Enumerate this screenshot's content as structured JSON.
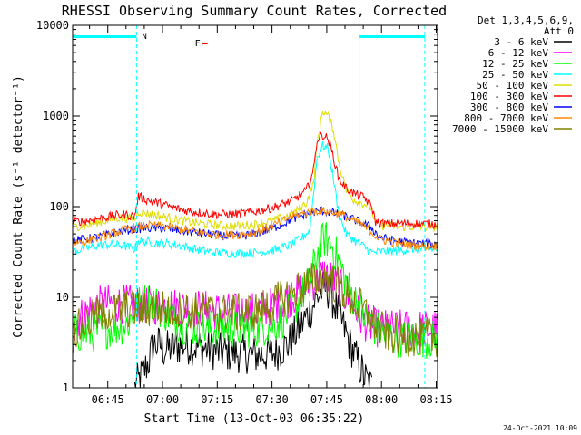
{
  "chart_data": {
    "type": "line",
    "title": "RHESSI Observing Summary Count Rates, Corrected",
    "xlabel": "Start Time (13-Oct-03 06:35:22)",
    "ylabel": "Corrected Count Rate (s⁻¹ detector⁻¹)",
    "yscale": "log",
    "ylim": [
      1,
      10000
    ],
    "xlim_minutes": [
      0,
      100
    ],
    "x_ticks": [
      {
        "label": "06:45",
        "t": 9.63
      },
      {
        "label": "07:00",
        "t": 24.63
      },
      {
        "label": "07:15",
        "t": 39.63
      },
      {
        "label": "07:30",
        "t": 54.63
      },
      {
        "label": "07:45",
        "t": 69.63
      },
      {
        "label": "08:00",
        "t": 84.63
      },
      {
        "label": "08:15",
        "t": 99.63
      }
    ],
    "y_ticks": [
      {
        "label": "1",
        "v": 1
      },
      {
        "label": "10",
        "v": 10
      },
      {
        "label": "100",
        "v": 100
      },
      {
        "label": "1000",
        "v": 1000
      },
      {
        "label": "10000",
        "v": 10000
      }
    ],
    "legend_header": [
      "Det 1,3,4,5,6,9,",
      "Att 0"
    ],
    "legend_position": "right",
    "series": [
      {
        "name": "3 - 6 keV",
        "color": "#000000",
        "points": [
          [
            17,
            1
          ],
          [
            19,
            1.4
          ],
          [
            21,
            2
          ],
          [
            22,
            3
          ],
          [
            24,
            3
          ],
          [
            25,
            2.6
          ],
          [
            30,
            3
          ],
          [
            35,
            2.8
          ],
          [
            40,
            2.5
          ],
          [
            45,
            2.4
          ],
          [
            50,
            2.3
          ],
          [
            55,
            2.4
          ],
          [
            59,
            3
          ],
          [
            62,
            4.5
          ],
          [
            65,
            7
          ],
          [
            67,
            10
          ],
          [
            68.5,
            12
          ],
          [
            69.5,
            13
          ],
          [
            70.5,
            11
          ],
          [
            72,
            8
          ],
          [
            74,
            5
          ],
          [
            76,
            3
          ],
          [
            78,
            2
          ],
          [
            80,
            1.3
          ],
          [
            82,
            1
          ]
        ]
      },
      {
        "name": "6 - 12 keV",
        "color": "#ff00ff",
        "points": [
          [
            0,
            5
          ],
          [
            3,
            6.5
          ],
          [
            6,
            8
          ],
          [
            10,
            8.5
          ],
          [
            15,
            8.5
          ],
          [
            18,
            8.3
          ],
          [
            22,
            8.2
          ],
          [
            26,
            8
          ],
          [
            30,
            7.8
          ],
          [
            35,
            7.5
          ],
          [
            40,
            7
          ],
          [
            45,
            6.8
          ],
          [
            50,
            7
          ],
          [
            55,
            8
          ],
          [
            60,
            10
          ],
          [
            64,
            13
          ],
          [
            67,
            16
          ],
          [
            69,
            18
          ],
          [
            71,
            16
          ],
          [
            73,
            13
          ],
          [
            75,
            10
          ],
          [
            77,
            8
          ],
          [
            79,
            6
          ],
          [
            81,
            5
          ],
          [
            83,
            4.6
          ],
          [
            86,
            4.5
          ],
          [
            90,
            4.5
          ],
          [
            95,
            4.5
          ],
          [
            100,
            4.5
          ]
        ]
      },
      {
        "name": "12 - 25 keV",
        "color": "#00ff00",
        "points": [
          [
            0,
            4
          ],
          [
            5,
            4
          ],
          [
            10,
            4.5
          ],
          [
            15,
            5
          ],
          [
            18,
            8
          ],
          [
            19,
            9
          ],
          [
            22,
            9
          ],
          [
            25,
            7
          ],
          [
            30,
            5
          ],
          [
            35,
            4.5
          ],
          [
            40,
            4.5
          ],
          [
            45,
            4.5
          ],
          [
            50,
            4.5
          ],
          [
            55,
            5
          ],
          [
            58,
            6
          ],
          [
            62,
            9
          ],
          [
            65,
            15
          ],
          [
            67,
            30
          ],
          [
            69,
            45
          ],
          [
            71,
            38
          ],
          [
            73,
            25
          ],
          [
            75,
            14
          ],
          [
            77,
            10
          ],
          [
            78.5,
            8
          ],
          [
            80,
            6
          ],
          [
            83,
            4.5
          ],
          [
            86,
            3.8
          ],
          [
            90,
            3.5
          ],
          [
            95,
            3.5
          ],
          [
            100,
            3.4
          ]
        ]
      },
      {
        "name": "25 - 50 keV",
        "color": "#00ffff",
        "points": [
          [
            0,
            32
          ],
          [
            4,
            35
          ],
          [
            8,
            38
          ],
          [
            12,
            38
          ],
          [
            14,
            37
          ],
          [
            17,
            34
          ],
          [
            18,
            42
          ],
          [
            22,
            40
          ],
          [
            26,
            39
          ],
          [
            30,
            37
          ],
          [
            35,
            33
          ],
          [
            40,
            31
          ],
          [
            45,
            30.5
          ],
          [
            50,
            31
          ],
          [
            55,
            33
          ],
          [
            60,
            38
          ],
          [
            63,
            46
          ],
          [
            65,
            55
          ],
          [
            67,
            350
          ],
          [
            68.5,
            470
          ],
          [
            70,
            440
          ],
          [
            71.5,
            200
          ],
          [
            73,
            80
          ],
          [
            75,
            50
          ],
          [
            78,
            40
          ],
          [
            80,
            36
          ],
          [
            82,
            31
          ],
          [
            85,
            32
          ],
          [
            90,
            33
          ],
          [
            95,
            34
          ],
          [
            100,
            34
          ]
        ]
      },
      {
        "name": "50 - 100 keV",
        "color": "#dddd00",
        "points": [
          [
            0,
            60
          ],
          [
            4,
            62
          ],
          [
            8,
            68
          ],
          [
            12,
            75
          ],
          [
            14,
            76
          ],
          [
            17,
            72
          ],
          [
            18,
            88
          ],
          [
            22,
            82
          ],
          [
            26,
            76
          ],
          [
            30,
            70
          ],
          [
            35,
            65
          ],
          [
            40,
            62
          ],
          [
            45,
            61
          ],
          [
            50,
            64
          ],
          [
            55,
            70
          ],
          [
            60,
            82
          ],
          [
            64,
            110
          ],
          [
            66,
            180
          ],
          [
            67,
            500
          ],
          [
            68.5,
            1150
          ],
          [
            70,
            1000
          ],
          [
            71.5,
            700
          ],
          [
            73,
            300
          ],
          [
            75,
            150
          ],
          [
            77,
            120
          ],
          [
            79,
            110
          ],
          [
            80.5,
            105
          ],
          [
            82,
            95
          ],
          [
            82.8,
            65
          ],
          [
            85,
            62
          ],
          [
            90,
            60
          ],
          [
            95,
            60
          ],
          [
            100,
            59
          ]
        ]
      },
      {
        "name": "100 - 300 keV",
        "color": "#ff0000",
        "points": [
          [
            0,
            68
          ],
          [
            4,
            70
          ],
          [
            8,
            75
          ],
          [
            12,
            80
          ],
          [
            14,
            82
          ],
          [
            17,
            78
          ],
          [
            18,
            130
          ],
          [
            20,
            120
          ],
          [
            25,
            105
          ],
          [
            30,
            92
          ],
          [
            35,
            86
          ],
          [
            40,
            82
          ],
          [
            45,
            83
          ],
          [
            50,
            88
          ],
          [
            55,
            98
          ],
          [
            60,
            115
          ],
          [
            64,
            150
          ],
          [
            66,
            250
          ],
          [
            67,
            550
          ],
          [
            68.5,
            620
          ],
          [
            70,
            560
          ],
          [
            71.5,
            350
          ],
          [
            73,
            200
          ],
          [
            75,
            160
          ],
          [
            77,
            140
          ],
          [
            80,
            125
          ],
          [
            82,
            100
          ],
          [
            83,
            68
          ],
          [
            85,
            65
          ],
          [
            90,
            65
          ],
          [
            95,
            65
          ],
          [
            100,
            64
          ]
        ]
      },
      {
        "name": "300 - 800 keV",
        "color": "#0000ff",
        "points": [
          [
            0,
            42
          ],
          [
            4,
            44
          ],
          [
            8,
            47
          ],
          [
            12,
            52
          ],
          [
            16,
            56
          ],
          [
            20,
            58
          ],
          [
            25,
            58
          ],
          [
            30,
            54
          ],
          [
            35,
            51
          ],
          [
            40,
            48
          ],
          [
            45,
            47
          ],
          [
            50,
            50
          ],
          [
            55,
            58
          ],
          [
            60,
            72
          ],
          [
            65,
            85
          ],
          [
            68,
            90
          ],
          [
            71,
            86
          ],
          [
            74,
            80
          ],
          [
            77,
            72
          ],
          [
            80,
            64
          ],
          [
            82,
            58
          ],
          [
            84,
            46
          ],
          [
            88,
            42
          ],
          [
            92,
            40
          ],
          [
            96,
            39
          ],
          [
            100,
            38
          ]
        ]
      },
      {
        "name": "800 - 7000 keV",
        "color": "#ff8800",
        "points": [
          [
            0,
            40
          ],
          [
            4,
            42
          ],
          [
            8,
            46
          ],
          [
            12,
            52
          ],
          [
            16,
            58
          ],
          [
            20,
            62
          ],
          [
            25,
            61
          ],
          [
            30,
            56
          ],
          [
            35,
            52
          ],
          [
            40,
            49
          ],
          [
            45,
            49
          ],
          [
            50,
            52
          ],
          [
            55,
            62
          ],
          [
            60,
            78
          ],
          [
            65,
            88
          ],
          [
            68,
            91
          ],
          [
            71,
            87
          ],
          [
            74,
            80
          ],
          [
            77,
            70
          ],
          [
            80,
            60
          ],
          [
            82,
            52
          ],
          [
            84,
            44
          ],
          [
            88,
            40
          ],
          [
            92,
            38
          ],
          [
            96,
            37
          ],
          [
            100,
            37
          ]
        ]
      },
      {
        "name": "7000 - 15000 keV",
        "color": "#808000",
        "points": [
          [
            0,
            4
          ],
          [
            3,
            5
          ],
          [
            6,
            6
          ],
          [
            9,
            6.8
          ],
          [
            12,
            7
          ],
          [
            15,
            7.5
          ],
          [
            20,
            7.5
          ],
          [
            25,
            7.4
          ],
          [
            30,
            7.3
          ],
          [
            35,
            7
          ],
          [
            40,
            6.8
          ],
          [
            45,
            6.7
          ],
          [
            50,
            7
          ],
          [
            55,
            8.5
          ],
          [
            60,
            11
          ],
          [
            64,
            14
          ],
          [
            67,
            16
          ],
          [
            69,
            16.5
          ],
          [
            71,
            15
          ],
          [
            74,
            12
          ],
          [
            77,
            9
          ],
          [
            80,
            7
          ],
          [
            82,
            5.5
          ],
          [
            84,
            4.5
          ],
          [
            86,
            4
          ],
          [
            90,
            3.7
          ],
          [
            95,
            3.6
          ],
          [
            100,
            3.6
          ]
        ]
      }
    ],
    "annotations": {
      "flag_N": "N",
      "flag_F": "F"
    }
  },
  "footer": {
    "date_stamp": "24-Oct-2021 10:09"
  },
  "colors": {
    "attenuator_bar": "#00ffff",
    "flag_F": "#ff0000"
  }
}
